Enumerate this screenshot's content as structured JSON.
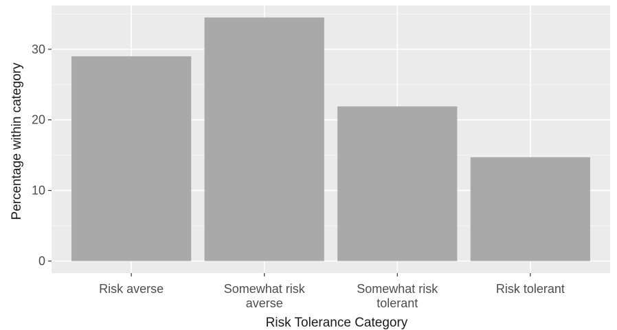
{
  "chart_data": {
    "type": "bar",
    "categories": [
      [
        "Risk averse"
      ],
      [
        "Somewhat risk",
        "averse"
      ],
      [
        "Somewhat risk",
        "tolerant"
      ],
      [
        "Risk tolerant"
      ]
    ],
    "values": [
      29.0,
      34.5,
      21.9,
      14.7
    ],
    "xlabel": "Risk Tolerance Category",
    "ylabel": "Percentage within category",
    "ylim": [
      -1.7,
      36.2
    ],
    "yticks": [
      0,
      10,
      20,
      30
    ],
    "grid": true,
    "colors": {
      "panel": "#ebebeb",
      "grid_major": "#ffffff",
      "bar": "#a9a9a9",
      "tick": "#333333"
    }
  }
}
